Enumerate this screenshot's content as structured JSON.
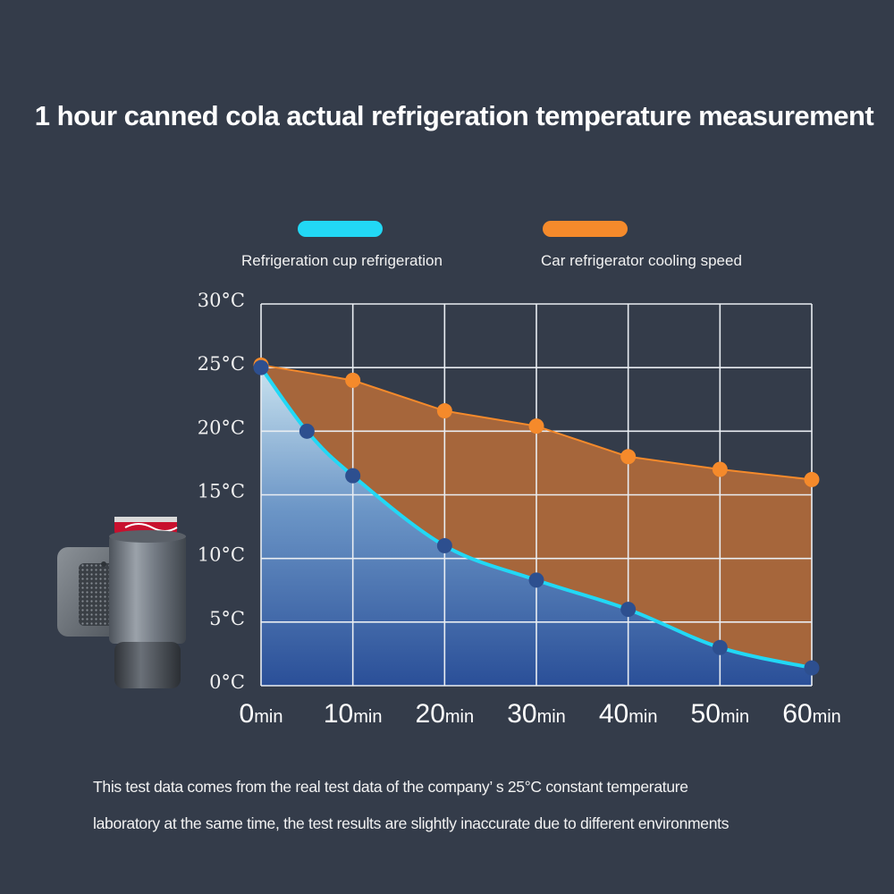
{
  "chart_data": {
    "type": "area",
    "title": "1 hour canned cola actual refrigeration temperature measurement",
    "x_unit": "min",
    "x_ticks": [
      0,
      10,
      20,
      30,
      40,
      50,
      60
    ],
    "xlim": [
      0,
      60
    ],
    "y_ticks": [
      "0°C",
      "5°C",
      "10°C",
      "15°C",
      "20°C",
      "25°C",
      "30°C"
    ],
    "ylim": [
      0,
      30
    ],
    "grid": true,
    "legend_position": "top",
    "series": [
      {
        "name": "Refrigeration cup refrigeration",
        "color": "#22d8f5",
        "x": [
          0,
          5,
          10,
          20,
          30,
          40,
          50,
          60
        ],
        "y": [
          25,
          20,
          16.5,
          11,
          8.3,
          6,
          3,
          1.4
        ]
      },
      {
        "name": "Car refrigerator cooling speed",
        "color": "#f58a2b",
        "x": [
          0,
          10,
          20,
          30,
          40,
          50,
          60
        ],
        "y": [
          25.2,
          24,
          21.6,
          20.4,
          18,
          17,
          16.2
        ]
      }
    ]
  },
  "footnote": {
    "line1": "This test data comes from the real test data of the company’ s 25°C constant temperature",
    "line2": "laboratory at the same time, the test results are slightly inaccurate due to different environments"
  },
  "colors": {
    "background": "#343c4a",
    "cyan": "#22d8f5",
    "orange": "#f58a2b",
    "dot_blue": "#2d4f8f"
  }
}
